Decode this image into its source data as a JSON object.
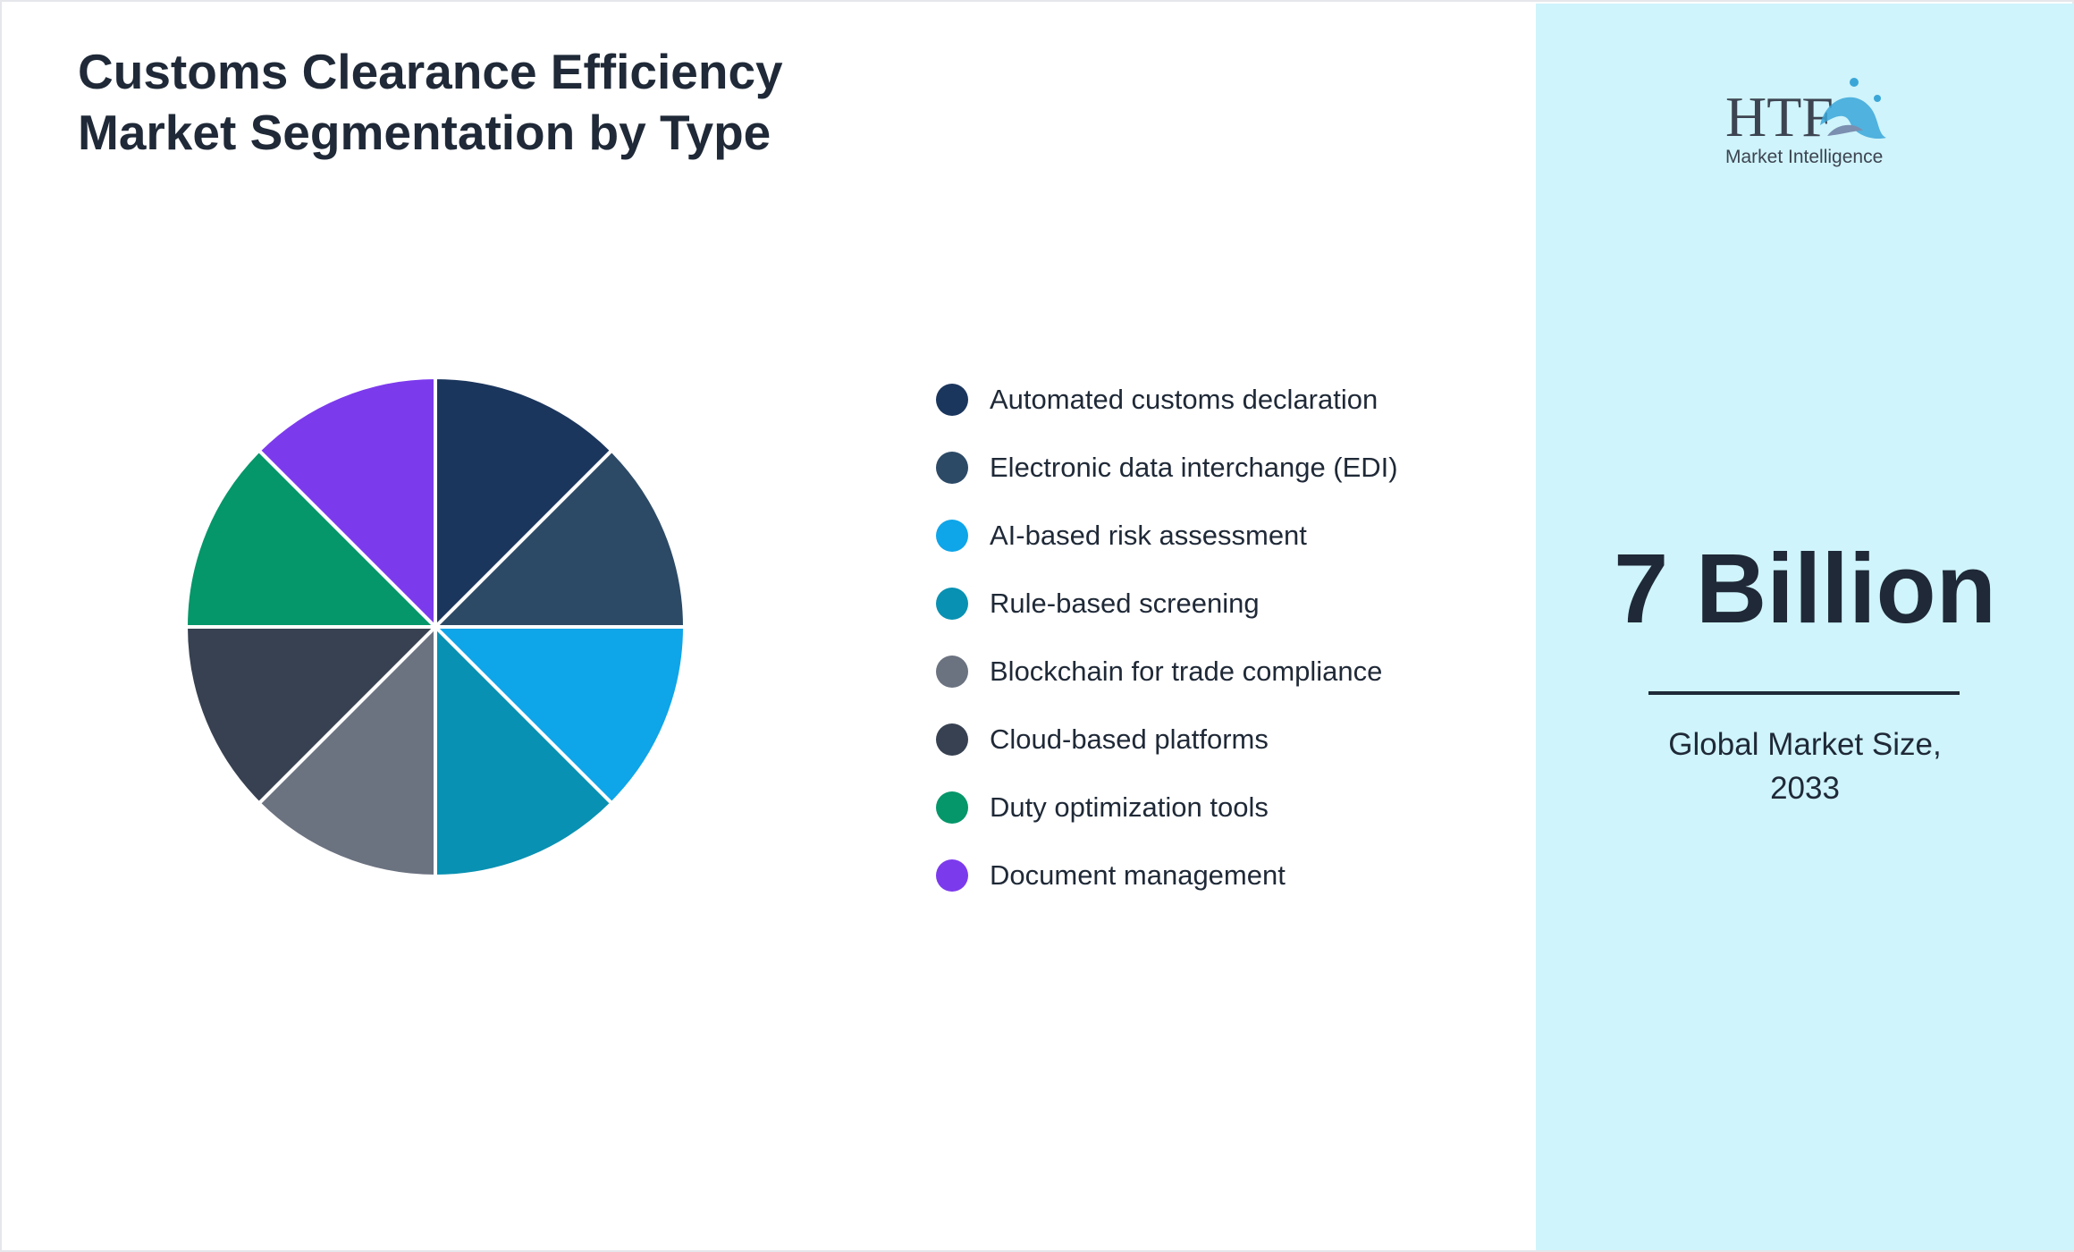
{
  "header": {
    "title_line1": "Customs Clearance Efficiency",
    "title_line2": "Market Segmentation by Type"
  },
  "chart_data": {
    "type": "pie",
    "title": "Customs Clearance Efficiency Market Segmentation by Type",
    "categories": [
      "Automated customs declaration",
      "Electronic data interchange (EDI)",
      "AI-based risk assessment",
      "Rule-based screening",
      "Blockchain for trade compliance",
      "Cloud-based platforms",
      "Duty optimization tools",
      "Document management"
    ],
    "values": [
      12.5,
      12.5,
      12.5,
      12.5,
      12.5,
      12.5,
      12.5,
      12.5
    ],
    "colors": [
      "#1b365d",
      "#2c4a66",
      "#0ea5e9",
      "#0891b2",
      "#6b7280",
      "#374151",
      "#059669",
      "#7c3aed"
    ],
    "legend_position": "right"
  },
  "sidebar": {
    "logo_main": "HTF",
    "logo_sub": "Market Intelligence",
    "value": "7 Billion",
    "caption_line1": "Global Market Size,",
    "caption_line2": "2033",
    "background": "#cff4fb"
  }
}
